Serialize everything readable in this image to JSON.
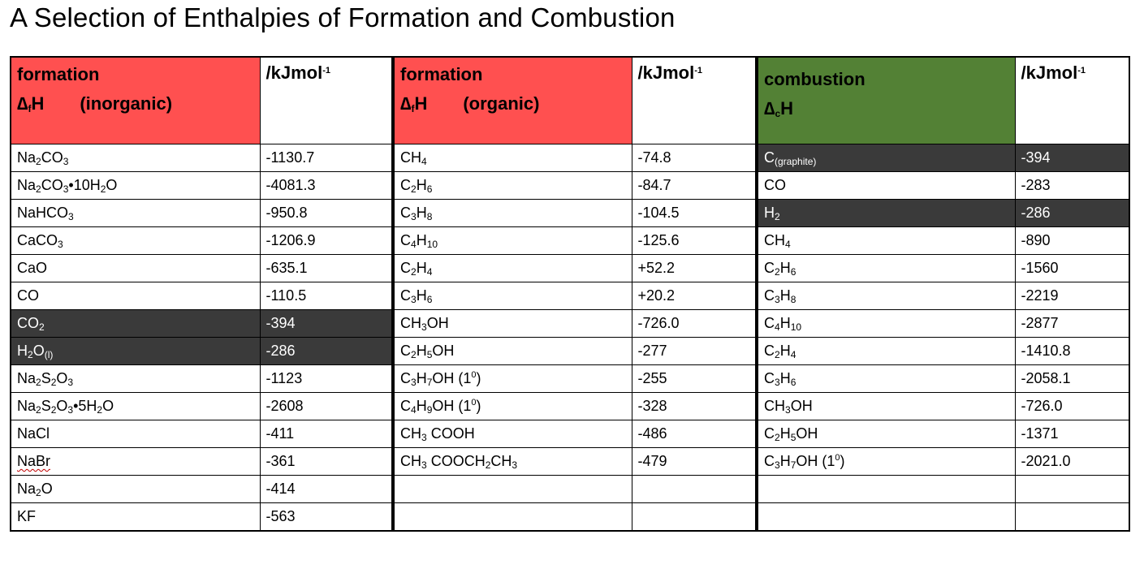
{
  "title": "A Selection of Enthalpies of Formation and Combustion",
  "colors": {
    "formation_header": "#ff5050",
    "combustion_header": "#538135",
    "highlight_row": "#3a3a3a"
  },
  "header": {
    "inorganic": {
      "line1": "formation",
      "delta": "∆",
      "sub": "f",
      "symbol": "H",
      "qualifier": "(inorganic)"
    },
    "organic": {
      "line1": "formation",
      "delta": "∆",
      "sub": "f",
      "symbol": "H",
      "qualifier": "(organic)"
    },
    "combustion": {
      "line1": "combustion",
      "delta": "∆",
      "sub": "c",
      "symbol": "H"
    },
    "unit": "/kJmol",
    "unit_exp": "-1"
  },
  "rows": [
    {
      "inorg": "Na2CO3",
      "inorg_val": "-1130.7",
      "org": "CH4",
      "org_val": "-74.8",
      "comb": "C(graphite)",
      "comb_val": "-394"
    },
    {
      "inorg": "Na2CO3•10H2O",
      "inorg_val": "-4081.3",
      "org": "C2H6",
      "org_val": "-84.7",
      "comb": "CO",
      "comb_val": "-283"
    },
    {
      "inorg": "NaHCO3",
      "inorg_val": "-950.8",
      "org": "C3H8",
      "org_val": "-104.5",
      "comb": "H2",
      "comb_val": "-286"
    },
    {
      "inorg": "CaCO3",
      "inorg_val": "-1206.9",
      "org": "C4H10",
      "org_val": "-125.6",
      "comb": "CH4",
      "comb_val": "-890"
    },
    {
      "inorg": "CaO",
      "inorg_val": "-635.1",
      "org": "C2H4",
      "org_val": "+52.2",
      "comb": "C2H6",
      "comb_val": "-1560"
    },
    {
      "inorg": "CO",
      "inorg_val": "-110.5",
      "org": "C3H6",
      "org_val": "+20.2",
      "comb": "C3H8",
      "comb_val": "-2219"
    },
    {
      "inorg": "CO2",
      "inorg_val": "-394",
      "org": "CH3OH",
      "org_val": "-726.0",
      "comb": "C4H10",
      "comb_val": "-2877"
    },
    {
      "inorg": "H2O(l)",
      "inorg_val": "-286",
      "org": "C2H5OH",
      "org_val": "-277",
      "comb": "C2H4",
      "comb_val": "-1410.8"
    },
    {
      "inorg": "Na2S2O3",
      "inorg_val": "-1123",
      "org": "C3H7OH (10)",
      "org_val": "-255",
      "comb": "C3H6",
      "comb_val": "-2058.1"
    },
    {
      "inorg": "Na2S2O3•5H2O",
      "inorg_val": "-2608",
      "org": "C4H9OH (10)",
      "org_val": "-328",
      "comb": "CH3OH",
      "comb_val": "-726.0"
    },
    {
      "inorg": "NaCl",
      "inorg_val": "-411",
      "org": "CH3 COOH",
      "org_val": "-486",
      "comb": "C2H5OH",
      "comb_val": "-1371"
    },
    {
      "inorg": "NaBr",
      "inorg_val": "-361",
      "org": "CH3 COOCH2CH3",
      "org_val": "-479",
      "comb": "C3H7OH (10)",
      "comb_val": "-2021.0"
    },
    {
      "inorg": "Na2O",
      "inorg_val": "-414",
      "org": "",
      "org_val": "",
      "comb": "",
      "comb_val": ""
    },
    {
      "inorg": "KF",
      "inorg_val": "-563",
      "org": "",
      "org_val": "",
      "comb": "",
      "comb_val": ""
    }
  ],
  "highlighted": {
    "inorg_rows": [
      6,
      7
    ],
    "comb_rows": [
      0,
      2
    ]
  }
}
